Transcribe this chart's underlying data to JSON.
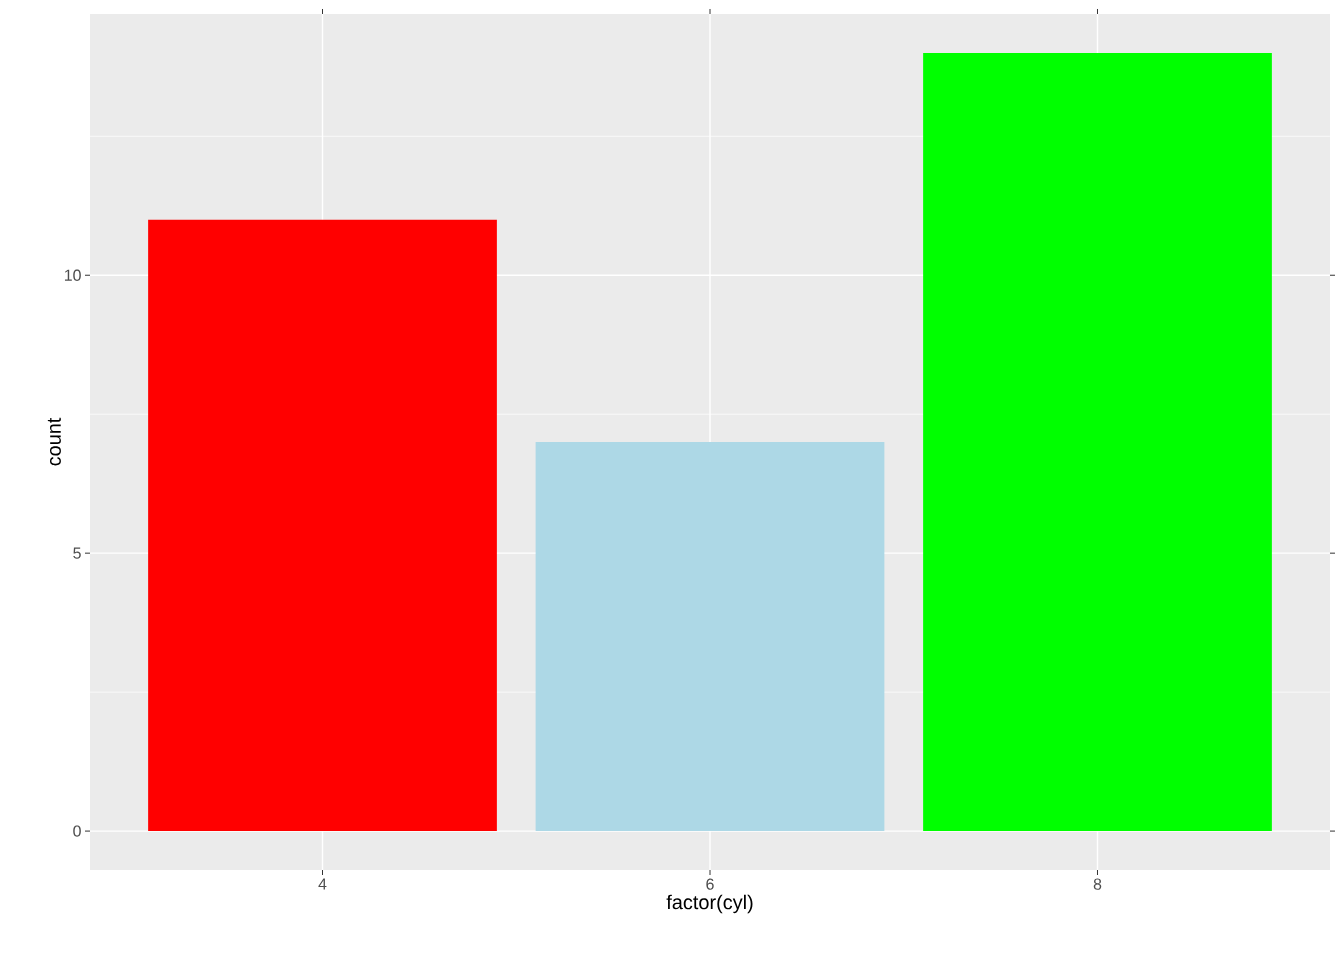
{
  "chart_data": {
    "type": "bar",
    "xlabel": "factor(cyl)",
    "ylabel": "count",
    "categories": [
      "4",
      "6",
      "8"
    ],
    "values": [
      11,
      7,
      14
    ],
    "colors": [
      "#ff0000",
      "#add8e6",
      "#00ff00"
    ],
    "ylim": [
      -0.7,
      14.7
    ],
    "yticks": [
      0,
      5,
      10
    ],
    "grid": true
  }
}
